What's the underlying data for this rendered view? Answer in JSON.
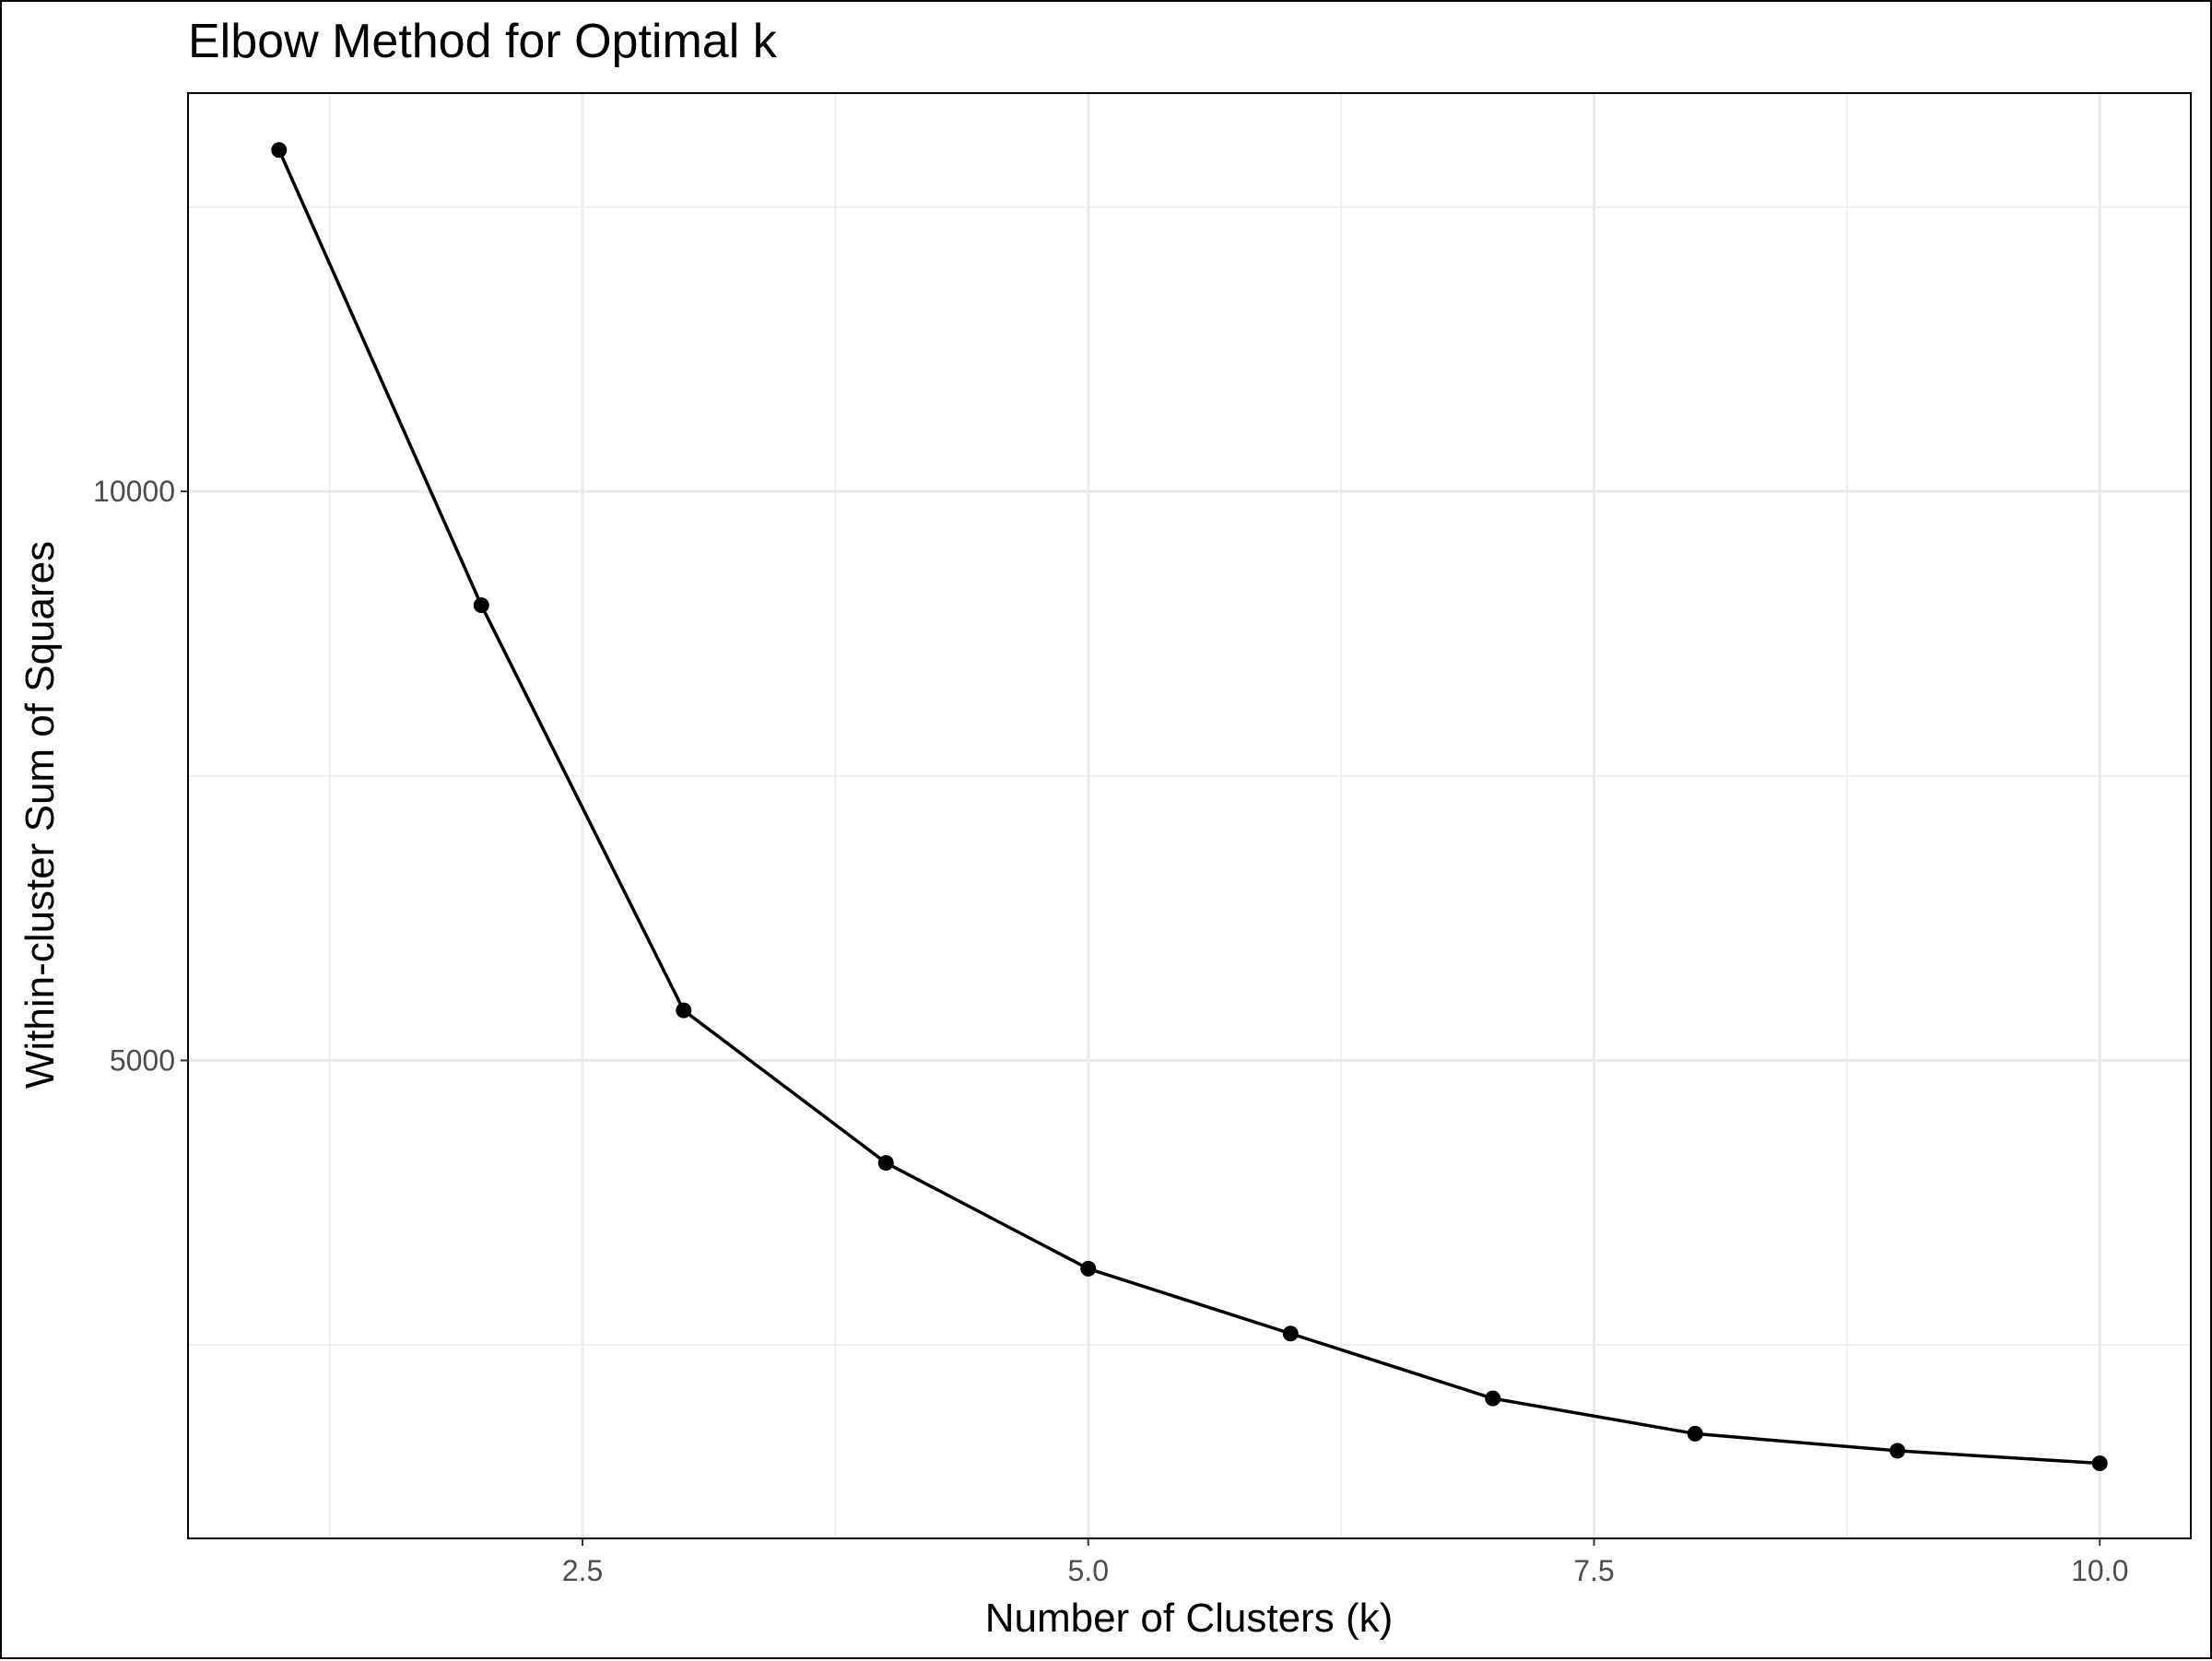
{
  "chart_data": {
    "type": "line",
    "title": "Elbow Method for Optimal k",
    "xlabel": "Number of Clusters (k)",
    "ylabel": "Within-cluster Sum of Squares",
    "x": [
      1,
      2,
      3,
      4,
      5,
      6,
      7,
      8,
      9,
      10
    ],
    "series": [
      {
        "values": [
          13000,
          9000,
          5440,
          4100,
          3170,
          2600,
          2030,
          1720,
          1570,
          1460
        ],
        "color": "#000000"
      }
    ],
    "x_ticks": [
      2.5,
      5.0,
      7.5,
      10.0
    ],
    "x_tick_labels": [
      "2.5",
      "5.0",
      "7.5",
      "10.0"
    ],
    "y_ticks": [
      5000,
      10000
    ],
    "y_tick_labels": [
      "5000",
      "10000"
    ],
    "xlim": [
      0.55,
      10.45
    ],
    "ylim": [
      800,
      13500
    ],
    "grid": true,
    "legend": "none",
    "theme_colors": {
      "grid": "#ebebeb",
      "tick_label": "#4d4d4d",
      "line": "#000000"
    }
  }
}
